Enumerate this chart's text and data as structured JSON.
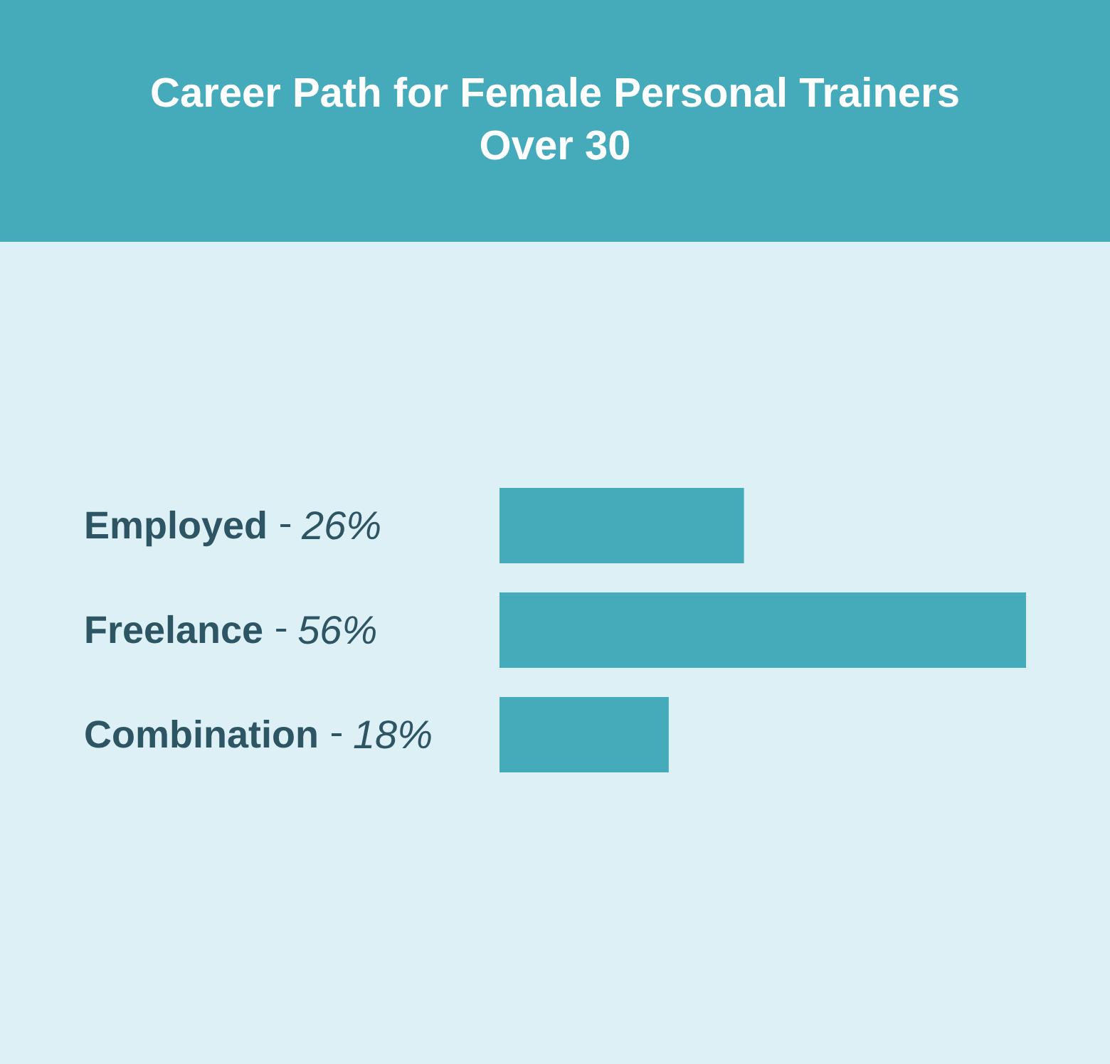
{
  "chart_data": {
    "type": "bar",
    "title": "Career Path for Female Personal Trainers Over 30",
    "orientation": "horizontal",
    "categories": [
      "Employed",
      "Freelance",
      "Combination"
    ],
    "values": [
      26,
      56,
      18
    ],
    "value_labels": [
      "26%",
      "56%",
      "18%"
    ],
    "color": "#45abbb"
  }
}
